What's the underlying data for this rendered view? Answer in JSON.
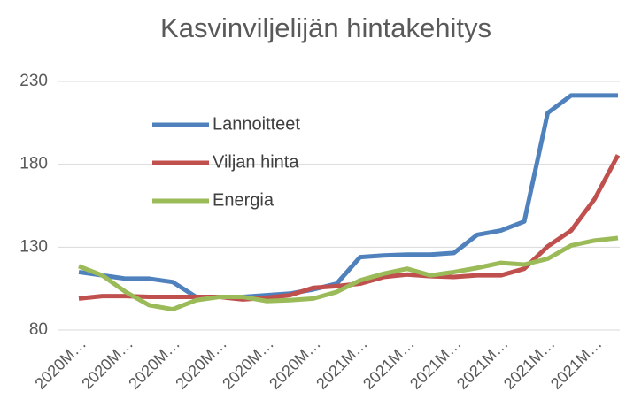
{
  "chart_data": {
    "type": "line",
    "title": "Kasvinviljelijän hintakehitys",
    "categories": [
      "2020M…",
      null,
      "2020M…",
      null,
      "2020M…",
      null,
      "2020M…",
      null,
      "2020M…",
      null,
      "2020M…",
      null,
      "2021M…",
      null,
      "2021M…",
      null,
      "2021M…",
      null,
      "2021M…",
      null,
      "2021M…",
      null,
      "2021M…",
      null
    ],
    "series": [
      {
        "name": "Lannoitteet",
        "color": "#4f81bd",
        "values": [
          115,
          113,
          111,
          111,
          109,
          100,
          100,
          100,
          101,
          102,
          104.5,
          108,
          124,
          125,
          125.5,
          125.5,
          126.5,
          137.5,
          140,
          145.5,
          211,
          221.5,
          221.5,
          221.5
        ]
      },
      {
        "name": "Viljan hinta",
        "color": "#c0504d",
        "values": [
          99,
          100.5,
          100.5,
          100,
          100,
          100,
          100,
          98.5,
          99.5,
          101,
          105.5,
          106.5,
          108,
          112,
          113.5,
          112.5,
          112,
          113,
          113,
          117,
          130.5,
          140,
          159,
          185.5
        ]
      },
      {
        "name": "Energia",
        "color": "#9bbb59",
        "values": [
          118.5,
          113,
          103,
          95,
          92.5,
          98,
          100,
          100,
          97.5,
          98,
          99,
          103,
          110,
          114,
          117,
          113,
          115,
          117.5,
          120.5,
          119.5,
          123,
          131,
          134,
          135.5
        ]
      }
    ],
    "ylim": [
      80,
      230
    ],
    "yticks": [
      80,
      130,
      180,
      230
    ],
    "grid": true,
    "legend": "upper left"
  }
}
